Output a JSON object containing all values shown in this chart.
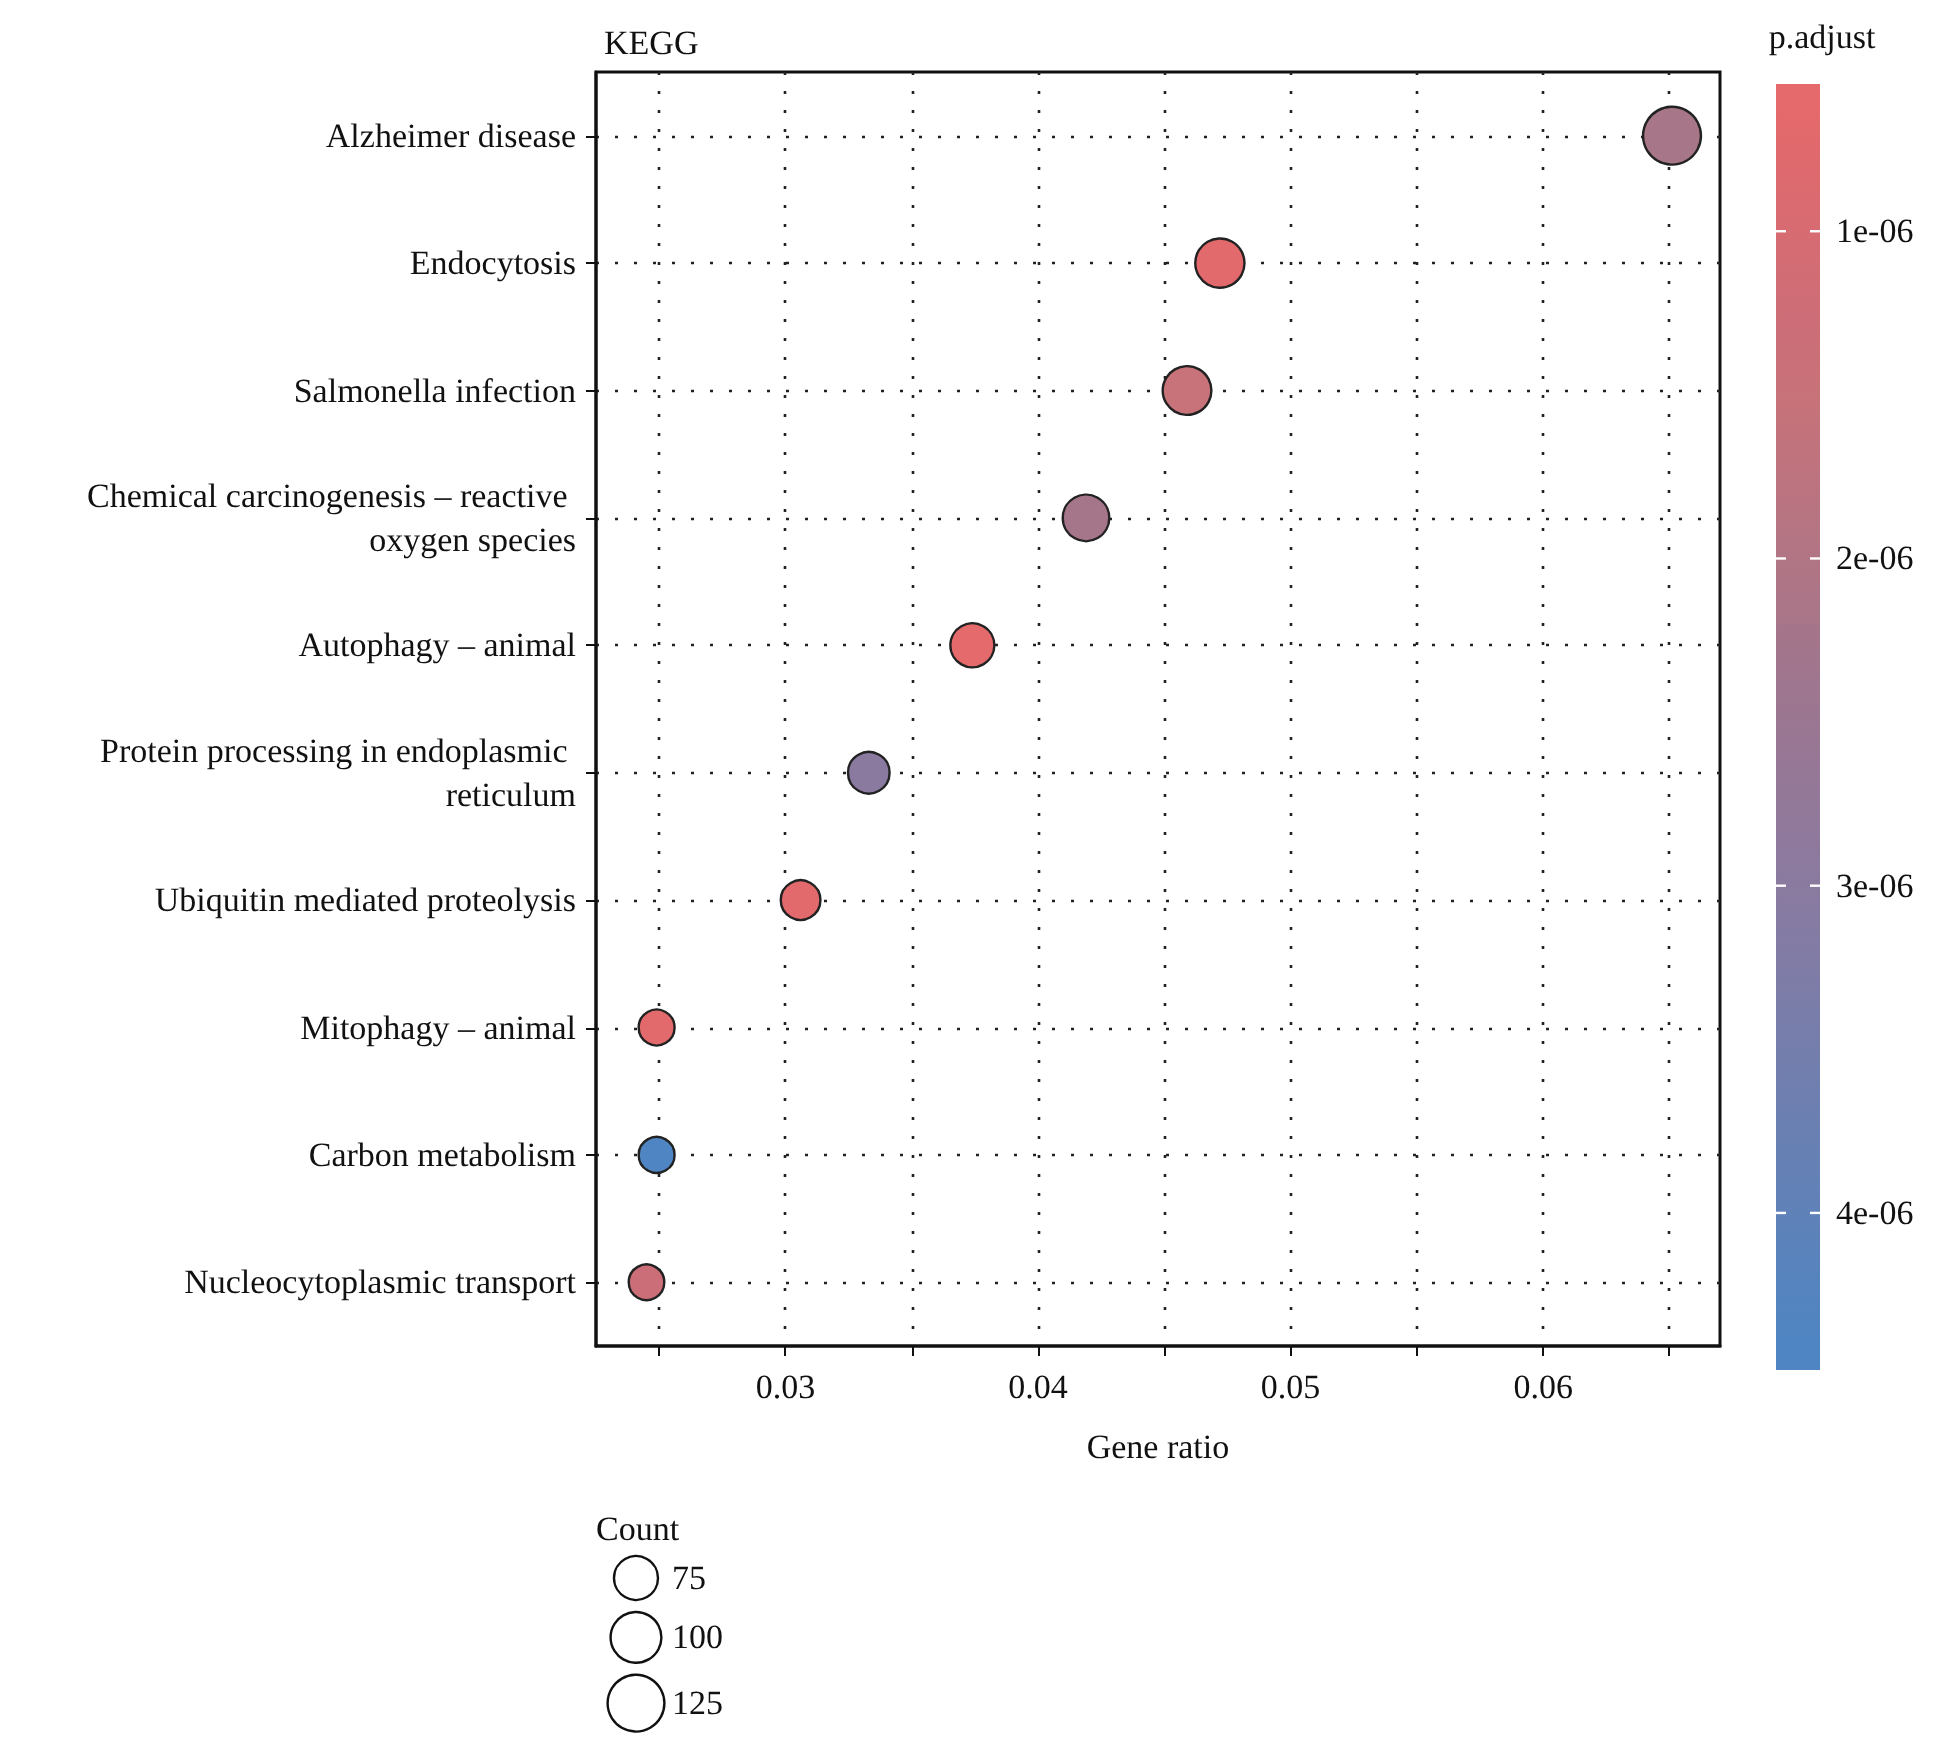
{
  "chart_data": {
    "type": "scatter",
    "title": "KEGG",
    "xlabel": "Gene ratio",
    "clabel": "p.adjust",
    "legend_title": "Count",
    "orientation": "horizontal",
    "categories": [
      "Alzheimer disease",
      "Endocytosis",
      "Salmonella infection",
      "Chemical carcinogenesis – reactive oxygen species",
      "Autophagy – animal",
      "Protein processing in endoplasmic reticulum",
      "Ubiquitin mediated proteolysis",
      "Mitophagy – animal",
      "Carbon metabolism",
      "Nucleocytoplasmic transport"
    ],
    "values": [
      0.0651,
      0.0472,
      0.0459,
      0.0419,
      0.0374,
      0.0333,
      0.0306,
      0.0249,
      0.0249,
      0.0245
    ],
    "sizes": [
      130,
      94,
      92,
      84,
      75,
      67,
      61,
      50,
      50,
      49
    ],
    "cvalues": [
      2.2e-06,
      7e-07,
      1.5e-06,
      2.2e-06,
      6e-07,
      3e-06,
      7e-07,
      7e-07,
      4.4e-06,
      1.3e-06
    ],
    "colors": [
      "#a87689",
      "#e2696c",
      "#c87279",
      "#a5758a",
      "#e56a6b",
      "#8a7aa0",
      "#e2696c",
      "#e2696c",
      "#4e85c2",
      "#cc6e78"
    ],
    "clim": [
      5.5e-07,
      4.48e-06
    ],
    "cticks": [
      {
        "value": 1e-06,
        "label": "1e-06"
      },
      {
        "value": 2e-06,
        "label": "2e-06"
      },
      {
        "value": 3e-06,
        "label": "3e-06"
      },
      {
        "value": 4e-06,
        "label": "4e-06"
      }
    ],
    "size_legend": [
      75,
      100,
      125
    ],
    "xlim": [
      0.0225,
      0.067
    ],
    "xticks": [
      {
        "value": 0.025,
        "label": null
      },
      {
        "value": 0.03,
        "label": "0.03"
      },
      {
        "value": 0.035,
        "label": null
      },
      {
        "value": 0.04,
        "label": "0.04"
      },
      {
        "value": 0.045,
        "label": null
      },
      {
        "value": 0.05,
        "label": "0.05"
      },
      {
        "value": 0.055,
        "label": null
      },
      {
        "value": 0.06,
        "label": "0.06"
      },
      {
        "value": 0.065,
        "label": null
      }
    ],
    "grid": true,
    "marker": "circle"
  }
}
